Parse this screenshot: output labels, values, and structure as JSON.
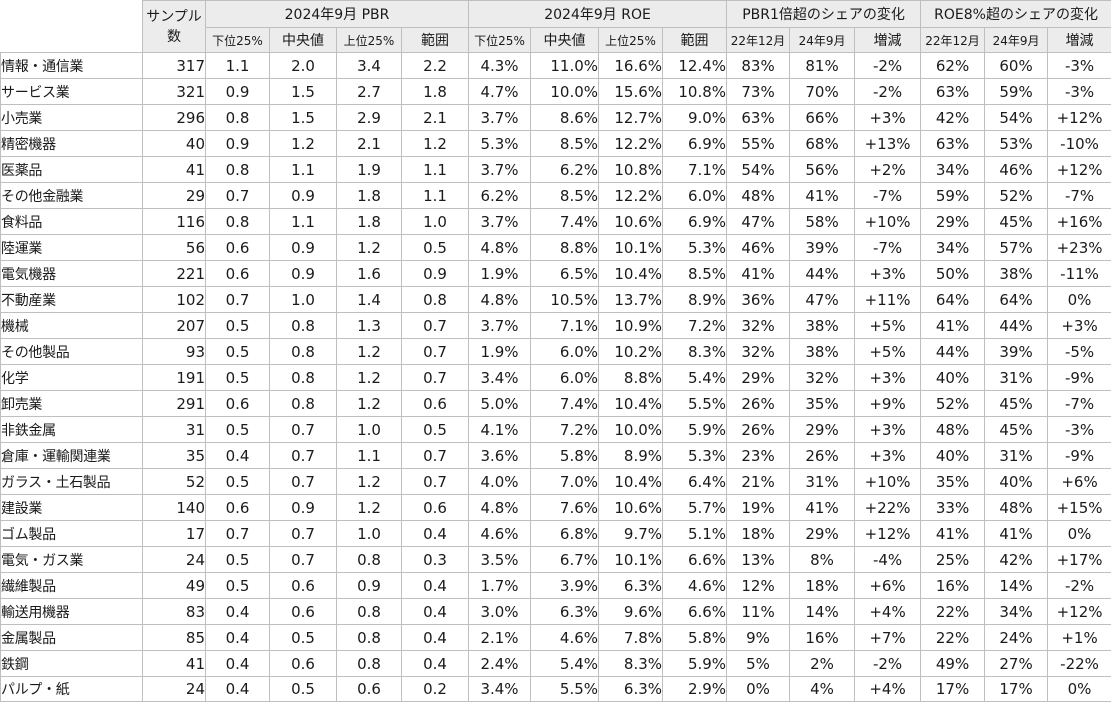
{
  "headers": {
    "sample": "サンプル数",
    "pbr_group": "2024年9月 PBR",
    "roe_group": "2024年9月 ROE",
    "pbr_share_group": "PBR1倍超のシェアの変化",
    "roe_share_group": "ROE8%超のシェアの変化",
    "pbr_cols": [
      "下位25%",
      "中央値",
      "上位25%",
      "範囲"
    ],
    "roe_cols": [
      "下位25%",
      "中央値",
      "上位25%",
      "範囲"
    ],
    "pbr_share_cols": [
      "22年12月",
      "24年9月",
      "増減"
    ],
    "roe_share_cols": [
      "22年12月",
      "24年9月",
      "増減"
    ]
  },
  "rows": [
    {
      "name": "情報・通信業",
      "n": "317",
      "pbr": [
        "1.1",
        "2.0",
        "3.4",
        "2.2"
      ],
      "roe": [
        "4.3%",
        "11.0%",
        "16.6%",
        "12.4%"
      ],
      "pbr_share": [
        "83%",
        "81%",
        "-2%"
      ],
      "roe_share": [
        "62%",
        "60%",
        "-3%"
      ]
    },
    {
      "name": "サービス業",
      "n": "321",
      "pbr": [
        "0.9",
        "1.5",
        "2.7",
        "1.8"
      ],
      "roe": [
        "4.7%",
        "10.0%",
        "15.6%",
        "10.8%"
      ],
      "pbr_share": [
        "73%",
        "70%",
        "-2%"
      ],
      "roe_share": [
        "63%",
        "59%",
        "-3%"
      ]
    },
    {
      "name": "小売業",
      "n": "296",
      "pbr": [
        "0.8",
        "1.5",
        "2.9",
        "2.1"
      ],
      "roe": [
        "3.7%",
        "8.6%",
        "12.7%",
        "9.0%"
      ],
      "pbr_share": [
        "63%",
        "66%",
        "+3%"
      ],
      "roe_share": [
        "42%",
        "54%",
        "+12%"
      ]
    },
    {
      "name": "精密機器",
      "n": "40",
      "pbr": [
        "0.9",
        "1.2",
        "2.1",
        "1.2"
      ],
      "roe": [
        "5.3%",
        "8.5%",
        "12.2%",
        "6.9%"
      ],
      "pbr_share": [
        "55%",
        "68%",
        "+13%"
      ],
      "roe_share": [
        "63%",
        "53%",
        "-10%"
      ]
    },
    {
      "name": "医薬品",
      "n": "41",
      "pbr": [
        "0.8",
        "1.1",
        "1.9",
        "1.1"
      ],
      "roe": [
        "3.7%",
        "6.2%",
        "10.8%",
        "7.1%"
      ],
      "pbr_share": [
        "54%",
        "56%",
        "+2%"
      ],
      "roe_share": [
        "34%",
        "46%",
        "+12%"
      ]
    },
    {
      "name": "その他金融業",
      "n": "29",
      "pbr": [
        "0.7",
        "0.9",
        "1.8",
        "1.1"
      ],
      "roe": [
        "6.2%",
        "8.5%",
        "12.2%",
        "6.0%"
      ],
      "pbr_share": [
        "48%",
        "41%",
        "-7%"
      ],
      "roe_share": [
        "59%",
        "52%",
        "-7%"
      ]
    },
    {
      "name": "食料品",
      "n": "116",
      "pbr": [
        "0.8",
        "1.1",
        "1.8",
        "1.0"
      ],
      "roe": [
        "3.7%",
        "7.4%",
        "10.6%",
        "6.9%"
      ],
      "pbr_share": [
        "47%",
        "58%",
        "+10%"
      ],
      "roe_share": [
        "29%",
        "45%",
        "+16%"
      ]
    },
    {
      "name": "陸運業",
      "n": "56",
      "pbr": [
        "0.6",
        "0.9",
        "1.2",
        "0.5"
      ],
      "roe": [
        "4.8%",
        "8.8%",
        "10.1%",
        "5.3%"
      ],
      "pbr_share": [
        "46%",
        "39%",
        "-7%"
      ],
      "roe_share": [
        "34%",
        "57%",
        "+23%"
      ]
    },
    {
      "name": "電気機器",
      "n": "221",
      "pbr": [
        "0.6",
        "0.9",
        "1.6",
        "0.9"
      ],
      "roe": [
        "1.9%",
        "6.5%",
        "10.4%",
        "8.5%"
      ],
      "pbr_share": [
        "41%",
        "44%",
        "+3%"
      ],
      "roe_share": [
        "50%",
        "38%",
        "-11%"
      ]
    },
    {
      "name": "不動産業",
      "n": "102",
      "pbr": [
        "0.7",
        "1.0",
        "1.4",
        "0.8"
      ],
      "roe": [
        "4.8%",
        "10.5%",
        "13.7%",
        "8.9%"
      ],
      "pbr_share": [
        "36%",
        "47%",
        "+11%"
      ],
      "roe_share": [
        "64%",
        "64%",
        "0%"
      ]
    },
    {
      "name": "機械",
      "n": "207",
      "pbr": [
        "0.5",
        "0.8",
        "1.3",
        "0.7"
      ],
      "roe": [
        "3.7%",
        "7.1%",
        "10.9%",
        "7.2%"
      ],
      "pbr_share": [
        "32%",
        "38%",
        "+5%"
      ],
      "roe_share": [
        "41%",
        "44%",
        "+3%"
      ]
    },
    {
      "name": "その他製品",
      "n": "93",
      "pbr": [
        "0.5",
        "0.8",
        "1.2",
        "0.7"
      ],
      "roe": [
        "1.9%",
        "6.0%",
        "10.2%",
        "8.3%"
      ],
      "pbr_share": [
        "32%",
        "38%",
        "+5%"
      ],
      "roe_share": [
        "44%",
        "39%",
        "-5%"
      ]
    },
    {
      "name": "化学",
      "n": "191",
      "pbr": [
        "0.5",
        "0.8",
        "1.2",
        "0.7"
      ],
      "roe": [
        "3.4%",
        "6.0%",
        "8.8%",
        "5.4%"
      ],
      "pbr_share": [
        "29%",
        "32%",
        "+3%"
      ],
      "roe_share": [
        "40%",
        "31%",
        "-9%"
      ]
    },
    {
      "name": "卸売業",
      "n": "291",
      "pbr": [
        "0.6",
        "0.8",
        "1.2",
        "0.6"
      ],
      "roe": [
        "5.0%",
        "7.4%",
        "10.4%",
        "5.5%"
      ],
      "pbr_share": [
        "26%",
        "35%",
        "+9%"
      ],
      "roe_share": [
        "52%",
        "45%",
        "-7%"
      ]
    },
    {
      "name": "非鉄金属",
      "n": "31",
      "pbr": [
        "0.5",
        "0.7",
        "1.0",
        "0.5"
      ],
      "roe": [
        "4.1%",
        "7.2%",
        "10.0%",
        "5.9%"
      ],
      "pbr_share": [
        "26%",
        "29%",
        "+3%"
      ],
      "roe_share": [
        "48%",
        "45%",
        "-3%"
      ]
    },
    {
      "name": "倉庫・運輸関連業",
      "n": "35",
      "pbr": [
        "0.4",
        "0.7",
        "1.1",
        "0.7"
      ],
      "roe": [
        "3.6%",
        "5.8%",
        "8.9%",
        "5.3%"
      ],
      "pbr_share": [
        "23%",
        "26%",
        "+3%"
      ],
      "roe_share": [
        "40%",
        "31%",
        "-9%"
      ]
    },
    {
      "name": "ガラス・土石製品",
      "n": "52",
      "pbr": [
        "0.5",
        "0.7",
        "1.2",
        "0.7"
      ],
      "roe": [
        "4.0%",
        "7.0%",
        "10.4%",
        "6.4%"
      ],
      "pbr_share": [
        "21%",
        "31%",
        "+10%"
      ],
      "roe_share": [
        "35%",
        "40%",
        "+6%"
      ]
    },
    {
      "name": "建設業",
      "n": "140",
      "pbr": [
        "0.6",
        "0.9",
        "1.2",
        "0.6"
      ],
      "roe": [
        "4.8%",
        "7.6%",
        "10.6%",
        "5.7%"
      ],
      "pbr_share": [
        "19%",
        "41%",
        "+22%"
      ],
      "roe_share": [
        "33%",
        "48%",
        "+15%"
      ]
    },
    {
      "name": "ゴム製品",
      "n": "17",
      "pbr": [
        "0.7",
        "0.7",
        "1.0",
        "0.4"
      ],
      "roe": [
        "4.6%",
        "6.8%",
        "9.7%",
        "5.1%"
      ],
      "pbr_share": [
        "18%",
        "29%",
        "+12%"
      ],
      "roe_share": [
        "41%",
        "41%",
        "0%"
      ]
    },
    {
      "name": "電気・ガス業",
      "n": "24",
      "pbr": [
        "0.5",
        "0.7",
        "0.8",
        "0.3"
      ],
      "roe": [
        "3.5%",
        "6.7%",
        "10.1%",
        "6.6%"
      ],
      "pbr_share": [
        "13%",
        "8%",
        "-4%"
      ],
      "roe_share": [
        "25%",
        "42%",
        "+17%"
      ]
    },
    {
      "name": "繊維製品",
      "n": "49",
      "pbr": [
        "0.5",
        "0.6",
        "0.9",
        "0.4"
      ],
      "roe": [
        "1.7%",
        "3.9%",
        "6.3%",
        "4.6%"
      ],
      "pbr_share": [
        "12%",
        "18%",
        "+6%"
      ],
      "roe_share": [
        "16%",
        "14%",
        "-2%"
      ]
    },
    {
      "name": "輸送用機器",
      "n": "83",
      "pbr": [
        "0.4",
        "0.6",
        "0.8",
        "0.4"
      ],
      "roe": [
        "3.0%",
        "6.3%",
        "9.6%",
        "6.6%"
      ],
      "pbr_share": [
        "11%",
        "14%",
        "+4%"
      ],
      "roe_share": [
        "22%",
        "34%",
        "+12%"
      ]
    },
    {
      "name": "金属製品",
      "n": "85",
      "pbr": [
        "0.4",
        "0.5",
        "0.8",
        "0.4"
      ],
      "roe": [
        "2.1%",
        "4.6%",
        "7.8%",
        "5.8%"
      ],
      "pbr_share": [
        "9%",
        "16%",
        "+7%"
      ],
      "roe_share": [
        "22%",
        "24%",
        "+1%"
      ]
    },
    {
      "name": "鉄鋼",
      "n": "41",
      "pbr": [
        "0.4",
        "0.6",
        "0.8",
        "0.4"
      ],
      "roe": [
        "2.4%",
        "5.4%",
        "8.3%",
        "5.9%"
      ],
      "pbr_share": [
        "5%",
        "2%",
        "-2%"
      ],
      "roe_share": [
        "49%",
        "27%",
        "-22%"
      ]
    },
    {
      "name": "パルプ・紙",
      "n": "24",
      "pbr": [
        "0.4",
        "0.5",
        "0.6",
        "0.2"
      ],
      "roe": [
        "3.4%",
        "5.5%",
        "6.3%",
        "2.9%"
      ],
      "pbr_share": [
        "0%",
        "4%",
        "+4%"
      ],
      "roe_share": [
        "17%",
        "17%",
        "0%"
      ]
    }
  ]
}
